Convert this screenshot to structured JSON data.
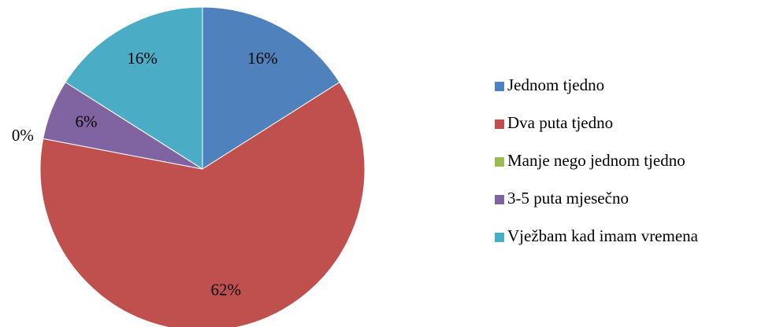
{
  "chart_data": {
    "type": "pie",
    "categories": [
      "Jednom tjedno",
      "Dva puta tjedno",
      "Manje nego jednom tjedno",
      "3-5 puta mjesečno",
      "Vježbam kad imam vremena"
    ],
    "values": [
      16,
      62,
      0,
      6,
      16
    ],
    "value_labels": [
      "16%",
      "62%",
      "0%",
      "6%",
      "16%"
    ],
    "colors": [
      "#4f81bd",
      "#c0504d",
      "#9bbb59",
      "#8064a2",
      "#4bacc6"
    ],
    "legend": "right"
  }
}
